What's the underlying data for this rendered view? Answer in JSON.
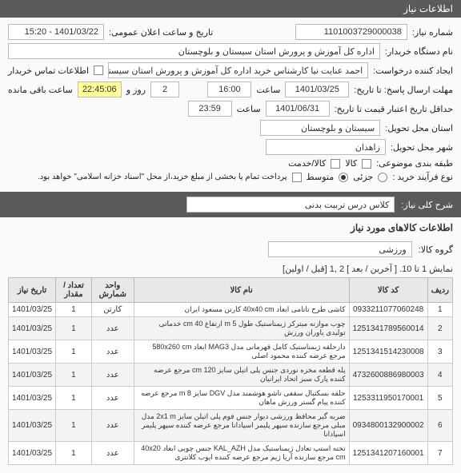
{
  "header": {
    "title": "اطلاعات نیاز"
  },
  "fields": {
    "reqno_label": "شماره نیاز:",
    "reqno": "1101003729000038",
    "pubdate_label": "تاریخ و ساعت اعلان عمومی:",
    "pubdate": "1401/03/22 - 15:20",
    "buyer_label": "نام دستگاه خریدار:",
    "buyer": "اداره کل آموزش و پرورش استان سیستان و بلوچستان",
    "creator_label": "ایجاد کننده درخواست:",
    "creator": "احمد عنایت نیا کارشناس خرید اداره کل آموزش و پرورش استان سیستان و بلوچ",
    "contact_label": "اطلاعات تماس خریدار",
    "deadline_label": "مهلت ارسال پاسخ: تا تاریخ:",
    "deadline_date": "1401/03/25",
    "time_label": "ساعت",
    "deadline_time": "16:00",
    "remain_label": "ساعت باقی مانده",
    "remain_days": "2",
    "remain_time": "22:45:06",
    "days_label": "روز و",
    "validity_label": "حداقل تاریخ اعتبار قیمت تا تاریخ:",
    "validity_date": "1401/06/31",
    "validity_time": "23:59",
    "province_label": "استان محل تحویل:",
    "province": "سیستان و بلوچستان",
    "city_label": "شهر محل تحویل:",
    "city": "زاهدان",
    "category_label": "طبقه بندی موضوعی:",
    "cat_product": "کالا",
    "cat_service": "کالا/خدمت",
    "process_label": "نوع فرآیند خرید :",
    "process_low": "جزئی",
    "process_mid": "متوسط",
    "note": "پرداخت تمام یا بخشی از مبلغ خرید،از محل \"اسناد خزانه اسلامی\" خواهد بود."
  },
  "desc": {
    "label": "شرح کلی نیاز:",
    "value": "کلاس درس تربیت بدنی"
  },
  "items": {
    "title": "اطلاعات کالاهای مورد نیاز",
    "group_label": "گروه کالا:",
    "group": "ورزشی",
    "pager": "نمایش 1 تا 10. [ آخرین / بعد ] 2 ,1 [قبل / اولین]",
    "cols": {
      "row": "ردیف",
      "code": "کد کالا",
      "name": "نام کالا",
      "unit": "واحد شمارش",
      "qty": "تعداد / مقدار",
      "date": "تاریخ نیاز"
    },
    "rows": [
      {
        "n": "1",
        "code": "0933211077060248",
        "name": "کاشی طرح تاتامی ابعاد 40x40 cm کارتن مسعود ایران",
        "unit": "کارتن",
        "qty": "1",
        "date": "1401/03/25"
      },
      {
        "n": "2",
        "code": "1251341789560014",
        "name": "چوب موازنه میترکز ژیمناستیک طول m 5 ارتفاع cm 40 خدماتی تولیدی یاوران ورزش",
        "unit": "عدد",
        "qty": "1",
        "date": "1401/03/25"
      },
      {
        "n": "3",
        "code": "1251341514230008",
        "name": "دارحلقه ژیمناستیک کامل قهرمانی مدل MAG3 ابعاد 580x260 cm مرجع عرضه کننده محمود اصلی",
        "unit": "عدد",
        "qty": "1",
        "date": "1401/03/25"
      },
      {
        "n": "4",
        "code": "4732600886980003",
        "name": "پله قطعه مخزه نوردی جنس پلی اتیلن سایز cm 120 مرجع عرضه کننده پارک سبز اتحاد ایرانیان",
        "unit": "عدد",
        "qty": "1",
        "date": "1401/03/25"
      },
      {
        "n": "5",
        "code": "1253311950170001",
        "name": "حلقه بسکتبال سقفی تاشو هوشمند مدل DGV سایز m 8 مرجع عرضه کننده پیام گستر ورزش ماهان",
        "unit": "عدد",
        "qty": "1",
        "date": "1401/03/25"
      },
      {
        "n": "6",
        "code": "0934800132900002",
        "name": "ضربه گیر محافظ ورزشی دیوار جنس فوم پلی اتیلن سایز 2x1 m مدل مبلی مرجع سازنده سپهر پلیمر اسپادانا مرجع عرضه کننده سپهر پلیمر اسپادانا",
        "unit": "عدد",
        "qty": "1",
        "date": "1401/03/25"
      },
      {
        "n": "7",
        "code": "1251341207160001",
        "name": "تخته استپ تعادل ژیمناستیک مدل KAL_AZH جنس چوبی ابعاد 40x20 cm مرجع سازنده آریا ژیم مرجع عرضه کننده ایوب کلانتری",
        "unit": "عدد",
        "qty": "1",
        "date": "1401/03/25"
      }
    ]
  }
}
